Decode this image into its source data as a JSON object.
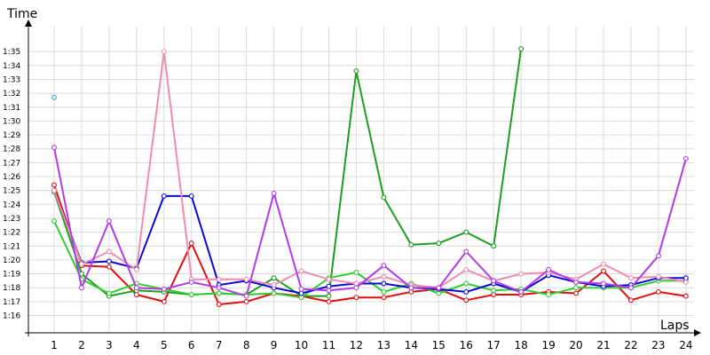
{
  "chart_data": {
    "type": "line",
    "title": "",
    "xlabel": "Laps",
    "ylabel": "Time",
    "y_unit": "seconds",
    "x": [
      1,
      2,
      3,
      4,
      5,
      6,
      7,
      8,
      9,
      10,
      11,
      12,
      13,
      14,
      15,
      16,
      17,
      18,
      19,
      20,
      21,
      22,
      23,
      24
    ],
    "y_tick_labels": [
      "1:16",
      "1:17",
      "1:18",
      "1:19",
      "1:20",
      "1:21",
      "1:22",
      "1:23",
      "1:24",
      "1:25",
      "1:26",
      "1:27",
      "1:28",
      "1:29",
      "1:30",
      "1:31",
      "1:32",
      "1:33",
      "1:34",
      "1:35"
    ],
    "ylim": [
      75,
      96
    ],
    "grid": true,
    "legend": "none",
    "series": [
      {
        "color": "#e01010",
        "values": [
          85.4,
          79.6,
          79.5,
          77.5,
          77.0,
          81.2,
          76.8,
          77.0,
          77.6,
          77.4,
          77.0,
          77.3,
          77.3,
          77.7,
          77.9,
          77.1,
          77.5,
          77.5,
          77.7,
          77.6,
          79.2,
          77.1,
          77.7,
          77.4
        ]
      },
      {
        "color": "#1f9e1f",
        "values": [
          84.9,
          79.0,
          77.4,
          77.8,
          77.7,
          77.5,
          77.6,
          77.5,
          78.7,
          77.4,
          77.4,
          93.6,
          84.5,
          81.1,
          81.2,
          82.0,
          81.0,
          95.2,
          null,
          null,
          null,
          null,
          null,
          null
        ]
      },
      {
        "color": "#33cc33",
        "values": [
          82.8,
          78.6,
          77.6,
          78.3,
          77.9,
          77.5,
          77.6,
          77.5,
          77.6,
          77.3,
          78.7,
          79.1,
          77.7,
          78.3,
          77.6,
          78.3,
          77.8,
          77.9,
          77.5,
          78.0,
          78.0,
          78.0,
          78.5,
          78.5
        ]
      },
      {
        "color": "#0a0ad6",
        "values": [
          85.0,
          79.8,
          79.9,
          79.4,
          84.6,
          84.6,
          78.2,
          78.5,
          78.0,
          77.6,
          78.1,
          78.3,
          78.3,
          78.0,
          77.9,
          77.7,
          78.3,
          77.7,
          78.9,
          78.4,
          78.1,
          78.2,
          78.7,
          78.7
        ]
      },
      {
        "color": "#f08cb4",
        "values": [
          85.0,
          79.7,
          80.6,
          79.3,
          95.0,
          78.6,
          78.6,
          78.6,
          78.2,
          79.2,
          78.6,
          78.3,
          78.8,
          78.2,
          78.0,
          79.3,
          78.5,
          79.0,
          79.1,
          78.6,
          79.7,
          78.7,
          78.8,
          78.4
        ]
      },
      {
        "color": "#b43ce6",
        "values": [
          88.1,
          78.0,
          82.8,
          78.0,
          77.9,
          78.4,
          78.0,
          77.4,
          84.8,
          77.9,
          77.8,
          78.0,
          79.6,
          78.0,
          78.0,
          80.6,
          78.5,
          77.7,
          79.3,
          78.4,
          78.3,
          78.0,
          80.3,
          87.3
        ]
      },
      {
        "color": "#33aadd",
        "values": [
          91.7,
          null,
          null,
          null,
          null,
          null,
          null,
          null,
          null,
          null,
          null,
          null,
          null,
          null,
          null,
          null,
          null,
          null,
          null,
          null,
          null,
          null,
          null,
          null
        ]
      }
    ]
  }
}
